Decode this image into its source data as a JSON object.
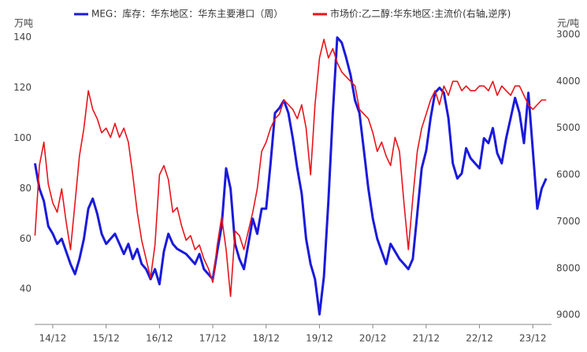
{
  "chart_data": {
    "type": "line",
    "y_axis_label": "万吨",
    "y2_axis_label": "元/吨",
    "categories": [
      null,
      null,
      null,
      null,
      "14/12",
      null,
      null,
      null,
      null,
      null,
      null,
      null,
      null,
      null,
      null,
      null,
      "15/12",
      null,
      null,
      null,
      null,
      null,
      null,
      null,
      null,
      null,
      null,
      null,
      "16/12",
      null,
      null,
      null,
      null,
      null,
      null,
      null,
      null,
      null,
      null,
      null,
      "17/12",
      null,
      null,
      null,
      null,
      null,
      null,
      null,
      null,
      null,
      null,
      null,
      "18/12",
      null,
      null,
      null,
      null,
      null,
      null,
      null,
      null,
      null,
      null,
      null,
      "19/12",
      null,
      null,
      null,
      null,
      null,
      null,
      null,
      null,
      null,
      null,
      null,
      "20/12",
      null,
      null,
      null,
      null,
      null,
      null,
      null,
      null,
      null,
      null,
      null,
      "21/12",
      null,
      null,
      null,
      null,
      null,
      null,
      null,
      null,
      null,
      null,
      null,
      "22/12",
      null,
      null,
      null,
      null,
      null,
      null,
      null,
      null,
      null,
      null,
      null,
      "23/12",
      null,
      null,
      null
    ],
    "series": [
      {
        "name": "MEG：库存：华东地区：华东主要港口（周）",
        "color": "#1a1adb",
        "axis": "y",
        "values": [
          90,
          80,
          75,
          65,
          62,
          58,
          60,
          55,
          50,
          46,
          52,
          60,
          72,
          76,
          70,
          62,
          58,
          60,
          62,
          58,
          54,
          58,
          52,
          56,
          50,
          48,
          44,
          48,
          42,
          55,
          62,
          58,
          56,
          55,
          54,
          52,
          50,
          54,
          48,
          46,
          44,
          55,
          65,
          88,
          80,
          58,
          52,
          48,
          58,
          68,
          62,
          72,
          72,
          90,
          110,
          112,
          115,
          110,
          100,
          88,
          78,
          60,
          50,
          44,
          30,
          45,
          75,
          110,
          140,
          138,
          132,
          125,
          115,
          110,
          95,
          80,
          68,
          60,
          55,
          50,
          58,
          55,
          52,
          50,
          48,
          52,
          70,
          88,
          95,
          108,
          118,
          120,
          118,
          108,
          90,
          84,
          86,
          96,
          92,
          90,
          88,
          100,
          98,
          104,
          94,
          90,
          100,
          108,
          116,
          110,
          98,
          118,
          95,
          72,
          80,
          84
        ]
      },
      {
        "name": "市场价:乙二醇:华东地区:主流价(右轴,逆序)",
        "color": "#e8141a",
        "axis": "y2",
        "values": [
          7300,
          5800,
          5300,
          6200,
          6600,
          6800,
          6300,
          7000,
          7600,
          6600,
          5600,
          5000,
          4200,
          4600,
          4800,
          5100,
          5000,
          5200,
          4900,
          5200,
          5000,
          5300,
          6000,
          6800,
          7400,
          7800,
          8200,
          7500,
          6000,
          5800,
          6100,
          6800,
          6700,
          7100,
          7400,
          7300,
          7600,
          7500,
          7800,
          8000,
          8300,
          7500,
          6900,
          7600,
          8600,
          7200,
          7300,
          7600,
          7200,
          6800,
          6300,
          5500,
          5300,
          5000,
          4800,
          4700,
          4400,
          4500,
          4600,
          4800,
          4500,
          5000,
          6000,
          4500,
          3500,
          3100,
          3500,
          3300,
          3600,
          3800,
          3900,
          4000,
          4100,
          4600,
          4700,
          4800,
          5100,
          5500,
          5300,
          5600,
          5800,
          5200,
          5500,
          6600,
          7600,
          6500,
          5500,
          5000,
          4700,
          4400,
          4200,
          4500,
          4100,
          4300,
          4000,
          4000,
          4200,
          4100,
          4200,
          4200,
          4100,
          4100,
          4200,
          4000,
          4300,
          4100,
          4200,
          4300,
          4100,
          4100,
          4300,
          4500,
          4600,
          4500,
          4400,
          4400
        ]
      }
    ],
    "ylim": [
      26,
      143
    ],
    "yticks": [
      40,
      60,
      80,
      100,
      120,
      140
    ],
    "y2lim": [
      9200,
      2900
    ],
    "y2ticks": [
      3000,
      4000,
      5000,
      6000,
      7000,
      8000,
      9000
    ],
    "grid": false
  }
}
